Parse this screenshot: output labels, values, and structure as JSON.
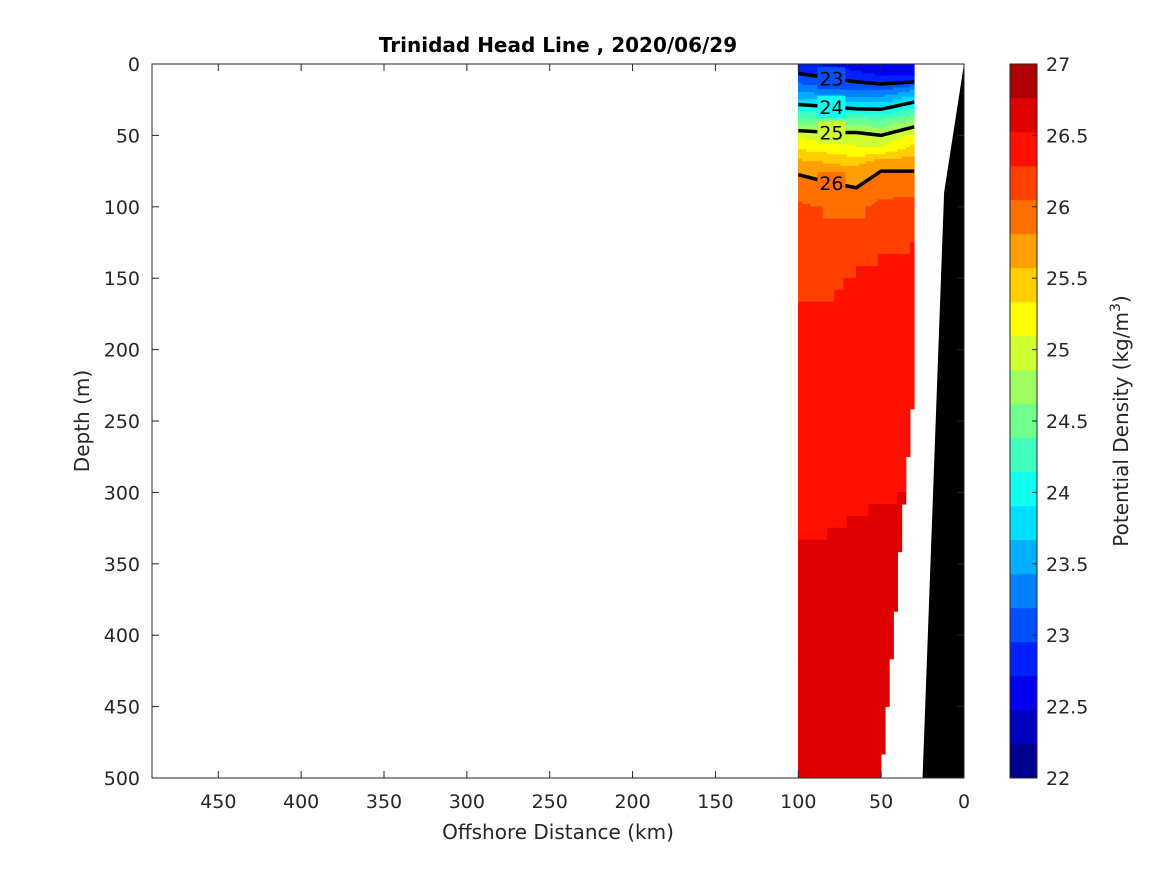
{
  "chart_data": {
    "type": "heatmap",
    "title": "Trinidad Head Line , 2020/06/29",
    "xlabel": "Offshore Distance (km)",
    "ylabel": "Depth (m)",
    "xlim": [
      490,
      0
    ],
    "ylim": [
      0,
      500
    ],
    "x_reversed": true,
    "y_reversed": true,
    "xticks": [
      450,
      400,
      350,
      300,
      250,
      200,
      150,
      100,
      50,
      0
    ],
    "yticks": [
      0,
      50,
      100,
      150,
      200,
      250,
      300,
      350,
      400,
      450,
      500
    ],
    "colorbar": {
      "label": "Potential Density (kg/m",
      "label_superscript": "3",
      "label_suffix": ")",
      "range": [
        22,
        27
      ],
      "step": 0.25,
      "ticks": [
        22,
        22.5,
        23,
        23.5,
        24,
        24.5,
        25,
        25.5,
        26,
        26.5,
        27
      ],
      "colors": [
        "#00008f",
        "#0000bf",
        "#0000ef",
        "#0020ff",
        "#0050ff",
        "#0080ff",
        "#00b0ff",
        "#00dfff",
        "#10ffef",
        "#40ffbf",
        "#70ff8f",
        "#9fff60",
        "#cfff30",
        "#ffff00",
        "#ffcf00",
        "#ff9f00",
        "#ff7000",
        "#ff4000",
        "#ff1000",
        "#df0000",
        "#af0000"
      ]
    },
    "bathymetry_color": "#000000",
    "density_section": {
      "distance_km": [
        100,
        80,
        65,
        50,
        30
      ],
      "depth_m": [
        0,
        10,
        20,
        30,
        40,
        50,
        60,
        70,
        80,
        90,
        100,
        150,
        200,
        250,
        300,
        350,
        400,
        450,
        500
      ],
      "max_depth_m": [
        500,
        500,
        500,
        500,
        225
      ],
      "density_kg_m3": [
        [
          22.8,
          22.7,
          22.6,
          22.5,
          22.6
        ],
        [
          23.1,
          23.0,
          22.9,
          22.8,
          22.8
        ],
        [
          23.5,
          23.4,
          23.3,
          23.3,
          23.6
        ],
        [
          24.1,
          24.0,
          23.9,
          23.9,
          24.2
        ],
        [
          24.6,
          24.6,
          24.6,
          24.5,
          24.8
        ],
        [
          25.2,
          25.1,
          25.1,
          25.0,
          25.3
        ],
        [
          25.5,
          25.4,
          25.3,
          25.3,
          25.6
        ],
        [
          25.85,
          25.75,
          25.7,
          25.95,
          25.95
        ],
        [
          26.05,
          25.95,
          25.9,
          26.05,
          26.05
        ],
        [
          26.2,
          26.1,
          26.05,
          26.2,
          26.2
        ],
        [
          26.28,
          26.22,
          26.18,
          26.3,
          26.35
        ],
        [
          26.45,
          26.45,
          26.53,
          26.58,
          26.62
        ],
        [
          26.58,
          26.6,
          26.64,
          26.66,
          26.68
        ],
        [
          26.64,
          26.66,
          26.68,
          26.7,
          26.7
        ],
        [
          26.7,
          26.71,
          26.73,
          26.74,
          26.75
        ],
        [
          26.77,
          26.78,
          26.79,
          26.8,
          26.8
        ],
        [
          26.82,
          26.83,
          26.84,
          26.85,
          26.85
        ],
        [
          26.86,
          26.87,
          26.88,
          26.89,
          26.89
        ],
        [
          26.9,
          26.91,
          26.92,
          26.93,
          26.93
        ]
      ],
      "labeled_contours": [
        23,
        24,
        25,
        26
      ]
    }
  }
}
